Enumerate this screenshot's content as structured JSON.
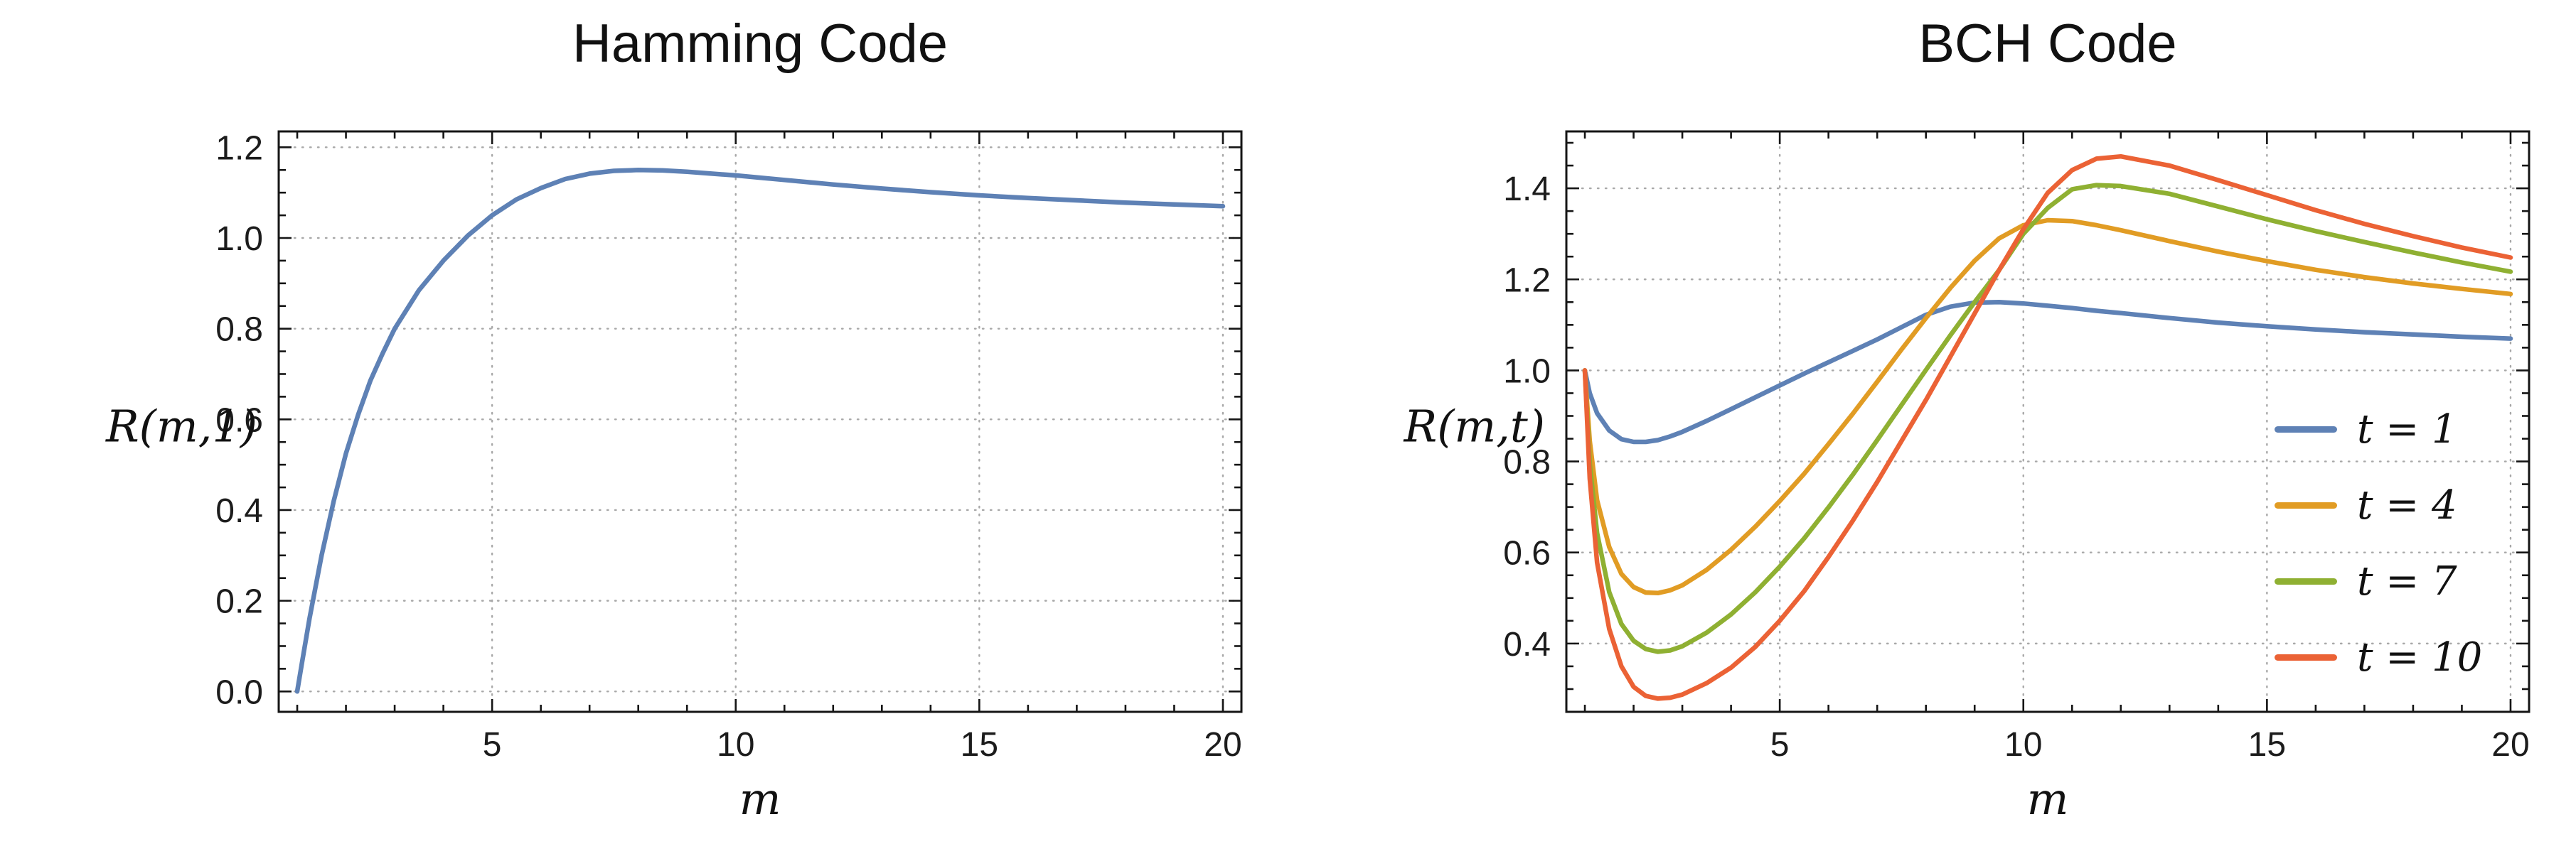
{
  "chart_data": [
    {
      "type": "line",
      "title": "Hamming Code",
      "xlabel": "m",
      "ylabel": "R(m,1)",
      "xlim": [
        0.62,
        20.38
      ],
      "ylim": [
        -0.045,
        1.235
      ],
      "x_ticks": [
        5,
        10,
        15,
        20
      ],
      "x_tick_labels": [
        "5",
        "10",
        "15",
        "20"
      ],
      "y_ticks": [
        0.0,
        0.2,
        0.4,
        0.6,
        0.8,
        1.0,
        1.2
      ],
      "y_tick_labels": [
        "0.0",
        "0.2",
        "0.4",
        "0.6",
        "0.8",
        "1.0",
        "1.2"
      ],
      "x_minor_step": 1,
      "y_minor_step": 0.05,
      "grid": true,
      "legend": false,
      "x": [
        1,
        1.1,
        1.25,
        1.5,
        1.75,
        2,
        2.25,
        2.5,
        2.75,
        3,
        3.5,
        4,
        4.5,
        5,
        5.5,
        6,
        6.5,
        7,
        7.5,
        8,
        8.5,
        9,
        9.5,
        10,
        10.5,
        11,
        11.5,
        12,
        13,
        14,
        15,
        16,
        17,
        18,
        19,
        20
      ],
      "series": [
        {
          "name": "R(m,1)",
          "color": "#5e81b5",
          "y": [
            0.0,
            0.065,
            0.16,
            0.3,
            0.42,
            0.525,
            0.61,
            0.685,
            0.745,
            0.8,
            0.885,
            0.95,
            1.005,
            1.05,
            1.085,
            1.11,
            1.13,
            1.142,
            1.148,
            1.15,
            1.149,
            1.146,
            1.142,
            1.138,
            1.133,
            1.128,
            1.123,
            1.118,
            1.109,
            1.101,
            1.094,
            1.088,
            1.083,
            1.078,
            1.074,
            1.07
          ]
        }
      ]
    },
    {
      "type": "line",
      "title": "BCH Code",
      "xlabel": "m",
      "ylabel": "R(m,t)",
      "xlim": [
        0.62,
        20.38
      ],
      "ylim": [
        0.25,
        1.525
      ],
      "x_ticks": [
        5,
        10,
        15,
        20
      ],
      "x_tick_labels": [
        "5",
        "10",
        "15",
        "20"
      ],
      "y_ticks": [
        0.4,
        0.6,
        0.8,
        1.0,
        1.2,
        1.4
      ],
      "y_tick_labels": [
        "0.4",
        "0.6",
        "0.8",
        "1.0",
        "1.2",
        "1.4"
      ],
      "x_minor_step": 1,
      "y_minor_step": 0.05,
      "grid": true,
      "legend": true,
      "legend_position": "right-middle",
      "x": [
        1,
        1.1,
        1.25,
        1.5,
        1.75,
        2,
        2.25,
        2.5,
        2.75,
        3,
        3.5,
        4,
        4.5,
        5,
        5.5,
        6,
        6.5,
        7,
        7.5,
        8,
        8.5,
        9,
        9.5,
        10,
        10.5,
        11,
        11.5,
        12,
        13,
        14,
        15,
        16,
        17,
        18,
        19,
        20
      ],
      "series": [
        {
          "name": "t = 1",
          "color": "#5e81b5",
          "y": [
            1.0,
            0.95,
            0.906,
            0.868,
            0.849,
            0.843,
            0.843,
            0.847,
            0.855,
            0.865,
            0.889,
            0.915,
            0.941,
            0.967,
            0.993,
            1.018,
            1.043,
            1.068,
            1.095,
            1.122,
            1.14,
            1.149,
            1.15,
            1.147,
            1.142,
            1.137,
            1.131,
            1.126,
            1.115,
            1.105,
            1.097,
            1.09,
            1.084,
            1.079,
            1.074,
            1.07
          ]
        },
        {
          "name": "t = 4",
          "color": "#e19c24",
          "y": [
            1.0,
            0.845,
            0.715,
            0.612,
            0.553,
            0.524,
            0.512,
            0.511,
            0.517,
            0.528,
            0.562,
            0.606,
            0.657,
            0.713,
            0.773,
            0.838,
            0.905,
            0.975,
            1.046,
            1.115,
            1.181,
            1.241,
            1.29,
            1.319,
            1.33,
            1.328,
            1.319,
            1.308,
            1.284,
            1.261,
            1.24,
            1.221,
            1.205,
            1.191,
            1.179,
            1.168
          ]
        },
        {
          "name": "t = 7",
          "color": "#8fb032",
          "y": [
            1.0,
            0.795,
            0.643,
            0.513,
            0.443,
            0.406,
            0.388,
            0.382,
            0.385,
            0.394,
            0.424,
            0.464,
            0.513,
            0.569,
            0.631,
            0.699,
            0.771,
            0.847,
            0.924,
            1.001,
            1.077,
            1.15,
            1.22,
            1.3,
            1.357,
            1.398,
            1.407,
            1.405,
            1.388,
            1.36,
            1.332,
            1.306,
            1.282,
            1.259,
            1.237,
            1.217
          ]
        },
        {
          "name": "t = 10",
          "color": "#eb6235",
          "y": [
            1.0,
            0.762,
            0.578,
            0.432,
            0.35,
            0.305,
            0.285,
            0.279,
            0.281,
            0.288,
            0.313,
            0.347,
            0.393,
            0.45,
            0.515,
            0.59,
            0.67,
            0.755,
            0.845,
            0.935,
            1.03,
            1.125,
            1.22,
            1.31,
            1.39,
            1.44,
            1.465,
            1.47,
            1.45,
            1.418,
            1.385,
            1.352,
            1.322,
            1.295,
            1.27,
            1.248
          ]
        }
      ]
    }
  ]
}
